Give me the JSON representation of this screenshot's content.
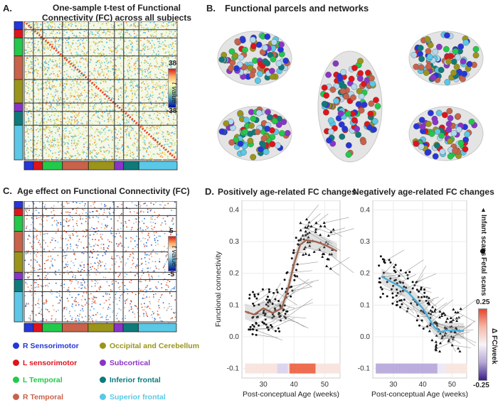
{
  "panel_a": {
    "letter": "A.",
    "title_line1": "One-sample t-test of Functional",
    "title_line2": "Connectivity (FC)  across all subjects",
    "colorbar": {
      "max": "38",
      "min": "-38",
      "label": "t value"
    }
  },
  "panel_b": {
    "letter": "B.",
    "title": "Functional parcels and networks"
  },
  "panel_c": {
    "letter": "C.",
    "title": "Age effect on Functional Connectivity (FC)",
    "colorbar": {
      "max": "5",
      "min": "-5",
      "label": "t value"
    }
  },
  "panel_d": {
    "letter": "D.",
    "title_pos": "Positively age-related FC changes",
    "title_neg": "Negatively age-related FC changes"
  },
  "networks": [
    {
      "name": "R Sensorimotor",
      "color": "#2636d8"
    },
    {
      "name": "L sensorimotor",
      "color": "#e0141b"
    },
    {
      "name": "L Temporal",
      "color": "#22c94a"
    },
    {
      "name": "R Temporal",
      "color": "#c8624a"
    },
    {
      "name": "Occipital and Cerebellum",
      "color": "#9a951a"
    },
    {
      "name": "Subcortical",
      "color": "#8a34c8"
    },
    {
      "name": "Inferior frontal",
      "color": "#0e7a7a"
    },
    {
      "name": "Superior frontal",
      "color": "#5ac8e6"
    }
  ],
  "chart_data": [
    {
      "type": "scatter",
      "title": "Positively age-related FC changes",
      "xlabel": "Post-conceptual Age (weeks)",
      "ylabel": "Functional connectivity",
      "xlim": [
        23,
        55
      ],
      "ylim": [
        -0.13,
        0.43
      ],
      "xticks": [
        30,
        40,
        50
      ],
      "yticks": [
        -0.1,
        0.0,
        0.1,
        0.2,
        0.3,
        0.4
      ],
      "ytick_labels": [
        "-0.1",
        "0.0",
        "0.1",
        "0.2",
        "0.3",
        "0.4"
      ],
      "trend_color": "#a0644e",
      "trend": [
        [
          24,
          0.08
        ],
        [
          27,
          0.07
        ],
        [
          30,
          0.09
        ],
        [
          33,
          0.075
        ],
        [
          36,
          0.09
        ],
        [
          38,
          0.15
        ],
        [
          40,
          0.23
        ],
        [
          42,
          0.29
        ],
        [
          44,
          0.305
        ],
        [
          47,
          0.3
        ],
        [
          50,
          0.29
        ],
        [
          54,
          0.27
        ]
      ]
    },
    {
      "type": "scatter",
      "title": "Negatively age-related FC changes",
      "xlabel": "Post-conceptual Age (weeks)",
      "ylabel": "",
      "xlim": [
        23,
        55
      ],
      "ylim": [
        -0.13,
        0.43
      ],
      "xticks": [
        30,
        40,
        50
      ],
      "yticks": [
        -0.1,
        0.0,
        0.1,
        0.2,
        0.3,
        0.4
      ],
      "ytick_labels": [
        "-0.1",
        "0.0",
        "0.1",
        "0.2",
        "0.3",
        "0.4"
      ],
      "trend_color": "#4aaed8",
      "trend": [
        [
          26,
          0.19
        ],
        [
          29,
          0.175
        ],
        [
          32,
          0.16
        ],
        [
          35,
          0.14
        ],
        [
          38,
          0.11
        ],
        [
          40,
          0.09
        ],
        [
          42,
          0.06
        ],
        [
          44,
          0.03
        ],
        [
          46,
          0.015
        ],
        [
          48,
          0.02
        ],
        [
          51,
          0.02
        ],
        [
          54,
          0.018
        ]
      ]
    }
  ],
  "legend_d": {
    "infant": "Infant scans",
    "fetal": "Fetal scans"
  },
  "delta_colorbar": {
    "max": "0.25",
    "min": "-0.25",
    "label": "Δ FC/week"
  }
}
